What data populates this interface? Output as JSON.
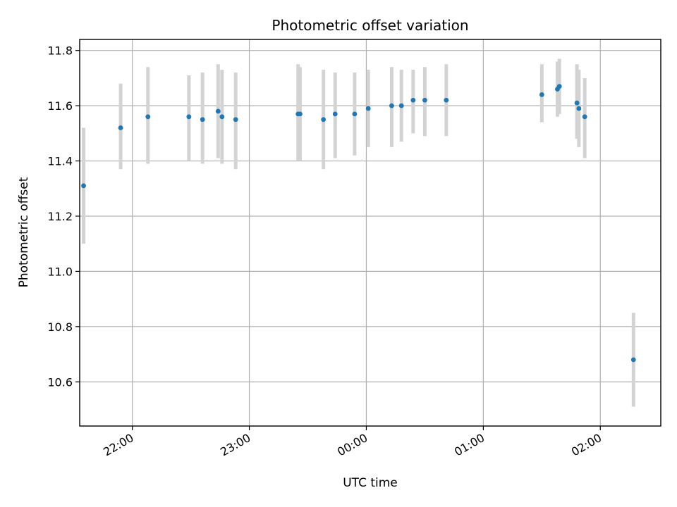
{
  "chart_data": {
    "type": "scatter",
    "title": "Photometric offset variation",
    "xlabel": "UTC time",
    "ylabel": "Photometric offset",
    "x_unit": "UTC time (HH:MM)",
    "xlim": [
      "21:33",
      "02:31"
    ],
    "ylim": [
      10.44,
      11.84
    ],
    "x_tick_labels": [
      "22:00",
      "23:00",
      "00:00",
      "01:00",
      "02:00"
    ],
    "y_tick_labels": [
      "10.6",
      "10.8",
      "11.0",
      "11.2",
      "11.4",
      "11.6",
      "11.8"
    ],
    "grid": true,
    "marker_color": "#1f77b4",
    "errorbar_color": "#d3d3d3",
    "points": [
      {
        "x": "21:35",
        "y": 11.31,
        "yerr_low": 11.1,
        "yerr_high": 11.52
      },
      {
        "x": "21:54",
        "y": 11.52,
        "yerr_low": 11.37,
        "yerr_high": 11.68
      },
      {
        "x": "22:08",
        "y": 11.56,
        "yerr_low": 11.39,
        "yerr_high": 11.74
      },
      {
        "x": "22:29",
        "y": 11.56,
        "yerr_low": 11.4,
        "yerr_high": 11.71
      },
      {
        "x": "22:36",
        "y": 11.55,
        "yerr_low": 11.39,
        "yerr_high": 11.72
      },
      {
        "x": "22:44",
        "y": 11.58,
        "yerr_low": 11.41,
        "yerr_high": 11.75
      },
      {
        "x": "22:46",
        "y": 11.56,
        "yerr_low": 11.39,
        "yerr_high": 11.73
      },
      {
        "x": "22:53",
        "y": 11.55,
        "yerr_low": 11.37,
        "yerr_high": 11.72
      },
      {
        "x": "23:25",
        "y": 11.57,
        "yerr_low": 11.4,
        "yerr_high": 11.75
      },
      {
        "x": "23:26",
        "y": 11.57,
        "yerr_low": 11.4,
        "yerr_high": 11.74
      },
      {
        "x": "23:38",
        "y": 11.55,
        "yerr_low": 11.37,
        "yerr_high": 11.73
      },
      {
        "x": "23:44",
        "y": 11.57,
        "yerr_low": 11.41,
        "yerr_high": 11.72
      },
      {
        "x": "23:54",
        "y": 11.57,
        "yerr_low": 11.42,
        "yerr_high": 11.72
      },
      {
        "x": "00:01",
        "y": 11.59,
        "yerr_low": 11.45,
        "yerr_high": 11.73
      },
      {
        "x": "00:13",
        "y": 11.6,
        "yerr_low": 11.45,
        "yerr_high": 11.74
      },
      {
        "x": "00:18",
        "y": 11.6,
        "yerr_low": 11.47,
        "yerr_high": 11.73
      },
      {
        "x": "00:24",
        "y": 11.62,
        "yerr_low": 11.5,
        "yerr_high": 11.73
      },
      {
        "x": "00:30",
        "y": 11.62,
        "yerr_low": 11.49,
        "yerr_high": 11.74
      },
      {
        "x": "00:41",
        "y": 11.62,
        "yerr_low": 11.49,
        "yerr_high": 11.75
      },
      {
        "x": "01:30",
        "y": 11.64,
        "yerr_low": 11.54,
        "yerr_high": 11.75
      },
      {
        "x": "01:38",
        "y": 11.66,
        "yerr_low": 11.56,
        "yerr_high": 11.76
      },
      {
        "x": "01:39",
        "y": 11.67,
        "yerr_low": 11.57,
        "yerr_high": 11.77
      },
      {
        "x": "01:48",
        "y": 11.61,
        "yerr_low": 11.48,
        "yerr_high": 11.75
      },
      {
        "x": "01:49",
        "y": 11.59,
        "yerr_low": 11.45,
        "yerr_high": 11.73
      },
      {
        "x": "01:52",
        "y": 11.56,
        "yerr_low": 11.41,
        "yerr_high": 11.7
      },
      {
        "x": "02:17",
        "y": 10.68,
        "yerr_low": 10.51,
        "yerr_high": 10.85
      }
    ]
  }
}
